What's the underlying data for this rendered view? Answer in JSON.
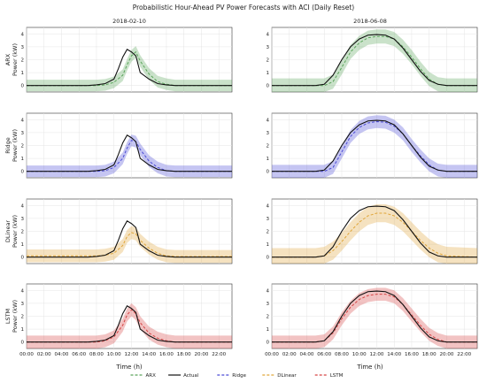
{
  "title": "Probabilistic Hour-Ahead PV Power Forecasts with ACI (Daily Reset)",
  "column_titles": [
    "2018-02-10",
    "2018-06-08"
  ],
  "row_labels": [
    "ARX",
    "Ridge",
    "DLinear",
    "LSTM"
  ],
  "ylabel_suffix": "Power (kW)",
  "xlabel": "Time (h)",
  "xticks": [
    "00:00",
    "02:00",
    "04:00",
    "06:00",
    "08:00",
    "10:00",
    "12:00",
    "14:00",
    "16:00",
    "18:00",
    "20:00",
    "22:00"
  ],
  "yticks": [
    "0",
    "1",
    "2",
    "3",
    "4"
  ],
  "legend": [
    {
      "label": "ARX",
      "color": "#5aa55a",
      "style": "dashed"
    },
    {
      "label": "Actual",
      "color": "#111111",
      "style": "solid"
    },
    {
      "label": "Ridge",
      "color": "#4a4ad6",
      "style": "dashed"
    },
    {
      "label": "DLinear",
      "color": "#e0a63a",
      "style": "dashed"
    },
    {
      "label": "LSTM",
      "color": "#d64545",
      "style": "dashed"
    }
  ],
  "chart_data": {
    "type": "line",
    "x_unit": "hour",
    "xlim": [
      0,
      23.5
    ],
    "ylim": [
      -0.5,
      4.5
    ],
    "grid": true,
    "legend_position": "bottom-center",
    "dates": [
      "2018-02-10",
      "2018-06-08"
    ],
    "actual": {
      "2018-02-10": [
        [
          0,
          0
        ],
        [
          7,
          0
        ],
        [
          8,
          0.05
        ],
        [
          9,
          0.15
        ],
        [
          10,
          0.5
        ],
        [
          10.5,
          1.3
        ],
        [
          11,
          2.2
        ],
        [
          11.5,
          2.8
        ],
        [
          12,
          2.6
        ],
        [
          12.5,
          2.3
        ],
        [
          13,
          1.0
        ],
        [
          14,
          0.5
        ],
        [
          15,
          0.15
        ],
        [
          16,
          0.05
        ],
        [
          17,
          0
        ],
        [
          23.5,
          0
        ]
      ],
      "2018-06-08": [
        [
          0,
          0
        ],
        [
          5,
          0
        ],
        [
          6,
          0.1
        ],
        [
          7,
          0.8
        ],
        [
          8,
          2.0
        ],
        [
          9,
          3.0
        ],
        [
          10,
          3.6
        ],
        [
          11,
          3.9
        ],
        [
          12,
          3.95
        ],
        [
          13,
          3.9
        ],
        [
          14,
          3.6
        ],
        [
          15,
          2.9
        ],
        [
          16,
          2.0
        ],
        [
          17,
          1.1
        ],
        [
          18,
          0.4
        ],
        [
          19,
          0.1
        ],
        [
          20,
          0
        ],
        [
          23.5,
          0
        ]
      ]
    },
    "series": [
      {
        "name": "ARX",
        "color": "#5aa55a",
        "forecast": {
          "2018-02-10": [
            [
              0,
              0
            ],
            [
              8,
              0
            ],
            [
              9,
              0.05
            ],
            [
              10,
              0.25
            ],
            [
              11,
              0.8
            ],
            [
              11.5,
              1.6
            ],
            [
              12,
              2.3
            ],
            [
              12.5,
              2.6
            ],
            [
              13,
              1.9
            ],
            [
              14,
              0.9
            ],
            [
              15,
              0.3
            ],
            [
              16,
              0.1
            ],
            [
              17,
              0
            ],
            [
              23.5,
              0
            ]
          ],
          "2018-06-08": [
            [
              0,
              0
            ],
            [
              5,
              0
            ],
            [
              6,
              0
            ],
            [
              7,
              0.3
            ],
            [
              8,
              1.4
            ],
            [
              9,
              2.6
            ],
            [
              10,
              3.3
            ],
            [
              11,
              3.7
            ],
            [
              12,
              3.8
            ],
            [
              13,
              3.8
            ],
            [
              14,
              3.6
            ],
            [
              15,
              3.0
            ],
            [
              16,
              2.2
            ],
            [
              17,
              1.3
            ],
            [
              18,
              0.5
            ],
            [
              19,
              0.1
            ],
            [
              20,
              0
            ],
            [
              23.5,
              0
            ]
          ]
        },
        "band_width": {
          "2018-02-10": 0.45,
          "2018-06-08": 0.55
        }
      },
      {
        "name": "Ridge",
        "color": "#4a4ad6",
        "forecast": {
          "2018-02-10": [
            [
              0,
              0
            ],
            [
              8,
              0
            ],
            [
              9,
              0.05
            ],
            [
              10,
              0.3
            ],
            [
              11,
              1.0
            ],
            [
              11.5,
              1.8
            ],
            [
              12,
              2.4
            ],
            [
              12.5,
              2.3
            ],
            [
              13,
              1.7
            ],
            [
              14,
              0.8
            ],
            [
              15,
              0.3
            ],
            [
              16,
              0.05
            ],
            [
              17,
              0
            ],
            [
              23.5,
              0
            ]
          ],
          "2018-06-08": [
            [
              0,
              0
            ],
            [
              5,
              0
            ],
            [
              6,
              0
            ],
            [
              7,
              0.3
            ],
            [
              8,
              1.5
            ],
            [
              9,
              2.7
            ],
            [
              10,
              3.4
            ],
            [
              11,
              3.75
            ],
            [
              12,
              3.85
            ],
            [
              13,
              3.8
            ],
            [
              14,
              3.5
            ],
            [
              15,
              2.9
            ],
            [
              16,
              2.0
            ],
            [
              17,
              1.2
            ],
            [
              18,
              0.5
            ],
            [
              19,
              0.1
            ],
            [
              20,
              0
            ],
            [
              23.5,
              0
            ]
          ]
        },
        "band_width": {
          "2018-02-10": 0.45,
          "2018-06-08": 0.5
        }
      },
      {
        "name": "DLinear",
        "color": "#e0a63a",
        "forecast": {
          "2018-02-10": [
            [
              0,
              0.1
            ],
            [
              8,
              0.1
            ],
            [
              9,
              0.15
            ],
            [
              10,
              0.3
            ],
            [
              11,
              0.9
            ],
            [
              11.5,
              1.6
            ],
            [
              12,
              1.9
            ],
            [
              12.5,
              1.8
            ],
            [
              13,
              1.3
            ],
            [
              14,
              0.7
            ],
            [
              15,
              0.3
            ],
            [
              16,
              0.1
            ],
            [
              17,
              0.05
            ],
            [
              23.5,
              0.05
            ]
          ],
          "2018-06-08": [
            [
              0,
              0
            ],
            [
              5,
              0
            ],
            [
              6,
              0.1
            ],
            [
              7,
              0.5
            ],
            [
              8,
              1.2
            ],
            [
              9,
              2.0
            ],
            [
              10,
              2.7
            ],
            [
              11,
              3.2
            ],
            [
              12,
              3.4
            ],
            [
              13,
              3.4
            ],
            [
              14,
              3.2
            ],
            [
              15,
              2.7
            ],
            [
              16,
              2.0
            ],
            [
              17,
              1.3
            ],
            [
              18,
              0.7
            ],
            [
              19,
              0.3
            ],
            [
              20,
              0.1
            ],
            [
              23.5,
              0
            ]
          ]
        },
        "band_width": {
          "2018-02-10": 0.5,
          "2018-06-08": 0.7
        }
      },
      {
        "name": "LSTM",
        "color": "#d64545",
        "forecast": {
          "2018-02-10": [
            [
              0,
              0
            ],
            [
              8,
              0
            ],
            [
              9,
              0.1
            ],
            [
              10,
              0.4
            ],
            [
              11,
              1.3
            ],
            [
              11.5,
              2.1
            ],
            [
              12,
              2.5
            ],
            [
              12.5,
              2.2
            ],
            [
              13,
              1.5
            ],
            [
              14,
              0.7
            ],
            [
              15,
              0.3
            ],
            [
              16,
              0.1
            ],
            [
              17,
              0
            ],
            [
              23.5,
              0
            ]
          ],
          "2018-06-08": [
            [
              0,
              0
            ],
            [
              5,
              0
            ],
            [
              6,
              0.1
            ],
            [
              7,
              0.7
            ],
            [
              8,
              1.8
            ],
            [
              9,
              2.7
            ],
            [
              10,
              3.3
            ],
            [
              11,
              3.6
            ],
            [
              12,
              3.7
            ],
            [
              13,
              3.7
            ],
            [
              14,
              3.5
            ],
            [
              15,
              2.9
            ],
            [
              16,
              2.1
            ],
            [
              17,
              1.3
            ],
            [
              18,
              0.6
            ],
            [
              19,
              0.2
            ],
            [
              20,
              0
            ],
            [
              23.5,
              0
            ]
          ]
        },
        "band_width": {
          "2018-02-10": 0.5,
          "2018-06-08": 0.5
        }
      }
    ]
  }
}
